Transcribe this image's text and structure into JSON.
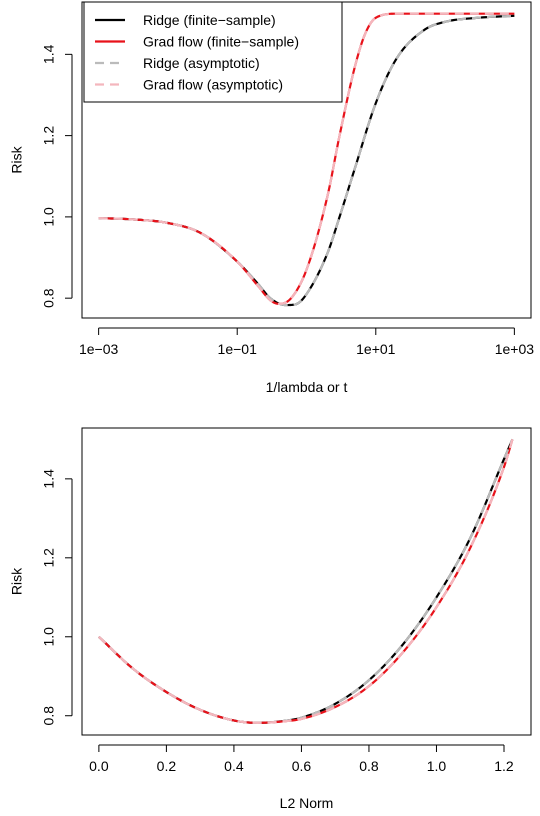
{
  "chart_data": [
    {
      "type": "line",
      "xscale": "log10",
      "xlim": [
        0.001,
        1000
      ],
      "ylim": [
        0.78,
        1.5
      ],
      "xlabel": "1/lambda or t",
      "ylabel": "Risk",
      "xticks": [
        0.001,
        0.1,
        10,
        1000
      ],
      "xtick_labels": [
        "1e−03",
        "1e−01",
        "1e+01",
        "1e+03"
      ],
      "yticks": [
        0.8,
        1.0,
        1.2,
        1.4
      ],
      "ytick_labels": [
        "0.8",
        "1.0",
        "1.2",
        "1.4"
      ],
      "grid": false,
      "legend": {
        "position": "top-left",
        "entries": [
          "Ridge (finite−sample)",
          "Grad flow (finite−sample)",
          "Ridge (asymptotic)",
          "Grad flow (asymptotic)"
        ]
      },
      "series": [
        {
          "name": "Ridge (finite−sample)",
          "color": "#000000",
          "dash": "solid",
          "x": [
            0.001,
            0.003,
            0.01,
            0.03,
            0.1,
            0.2,
            0.3,
            0.5,
            0.7,
            1,
            2,
            3,
            5,
            10,
            20,
            50,
            100,
            300,
            1000
          ],
          "y": [
            0.997,
            0.994,
            0.985,
            0.96,
            0.89,
            0.835,
            0.8,
            0.783,
            0.785,
            0.81,
            0.91,
            1.0,
            1.12,
            1.28,
            1.39,
            1.46,
            1.48,
            1.49,
            1.495
          ]
        },
        {
          "name": "Grad flow (finite−sample)",
          "color": "#e8121a",
          "dash": "solid",
          "x": [
            0.001,
            0.003,
            0.01,
            0.03,
            0.1,
            0.2,
            0.3,
            0.4,
            0.6,
            1,
            2,
            3,
            5,
            7,
            10,
            20,
            50,
            100,
            1000
          ],
          "y": [
            0.997,
            0.994,
            0.985,
            0.96,
            0.89,
            0.83,
            0.795,
            0.786,
            0.8,
            0.87,
            1.05,
            1.2,
            1.37,
            1.45,
            1.49,
            1.5,
            1.5,
            1.5,
            1.5
          ]
        },
        {
          "name": "Ridge (asymptotic)",
          "color": "#bbbbbb",
          "dash": "dashed",
          "x": [
            0.001,
            0.003,
            0.01,
            0.03,
            0.1,
            0.2,
            0.3,
            0.5,
            0.7,
            1,
            2,
            3,
            5,
            10,
            20,
            50,
            100,
            300,
            1000
          ],
          "y": [
            0.997,
            0.994,
            0.985,
            0.96,
            0.89,
            0.835,
            0.8,
            0.783,
            0.785,
            0.81,
            0.91,
            1.0,
            1.12,
            1.28,
            1.39,
            1.46,
            1.48,
            1.49,
            1.495
          ]
        },
        {
          "name": "Grad flow (asymptotic)",
          "color": "#f4b6bd",
          "dash": "dashed",
          "x": [
            0.001,
            0.003,
            0.01,
            0.03,
            0.1,
            0.2,
            0.3,
            0.4,
            0.6,
            1,
            2,
            3,
            5,
            7,
            10,
            20,
            50,
            100,
            1000
          ],
          "y": [
            0.997,
            0.994,
            0.985,
            0.96,
            0.89,
            0.83,
            0.795,
            0.786,
            0.8,
            0.87,
            1.05,
            1.2,
            1.37,
            1.45,
            1.49,
            1.5,
            1.5,
            1.5,
            1.5
          ]
        }
      ]
    },
    {
      "type": "line",
      "xscale": "linear",
      "xlim": [
        -0.05,
        1.28
      ],
      "ylim": [
        0.78,
        1.5
      ],
      "xlabel": "L2 Norm",
      "ylabel": "Risk",
      "xticks": [
        0.0,
        0.2,
        0.4,
        0.6,
        0.8,
        1.0,
        1.2
      ],
      "xtick_labels": [
        "0.0",
        "0.2",
        "0.4",
        "0.6",
        "0.8",
        "1.0",
        "1.2"
      ],
      "yticks": [
        0.8,
        1.0,
        1.2,
        1.4
      ],
      "ytick_labels": [
        "0.8",
        "1.0",
        "1.2",
        "1.4"
      ],
      "grid": false,
      "series": [
        {
          "color": "#000000",
          "dash": "solid",
          "x": [
            0.0,
            0.1,
            0.2,
            0.3,
            0.4,
            0.47,
            0.55,
            0.6,
            0.7,
            0.8,
            0.9,
            1.0,
            1.1,
            1.2,
            1.225
          ],
          "y": [
            1.0,
            0.92,
            0.86,
            0.815,
            0.788,
            0.782,
            0.787,
            0.795,
            0.83,
            0.89,
            0.98,
            1.1,
            1.25,
            1.45,
            1.5
          ]
        },
        {
          "color": "#e8121a",
          "dash": "solid",
          "x": [
            0.0,
            0.1,
            0.2,
            0.3,
            0.4,
            0.47,
            0.55,
            0.6,
            0.7,
            0.8,
            0.9,
            1.0,
            1.1,
            1.2,
            1.225
          ],
          "y": [
            1.0,
            0.92,
            0.86,
            0.815,
            0.788,
            0.782,
            0.786,
            0.792,
            0.822,
            0.875,
            0.96,
            1.075,
            1.225,
            1.43,
            1.5
          ]
        },
        {
          "color": "#bbbbbb",
          "dash": "dashed",
          "x": [
            0.0,
            0.1,
            0.2,
            0.3,
            0.4,
            0.47,
            0.55,
            0.6,
            0.7,
            0.8,
            0.9,
            1.0,
            1.1,
            1.2,
            1.225
          ],
          "y": [
            1.0,
            0.92,
            0.86,
            0.815,
            0.788,
            0.782,
            0.787,
            0.795,
            0.83,
            0.89,
            0.98,
            1.1,
            1.25,
            1.45,
            1.5
          ]
        },
        {
          "color": "#f4b6bd",
          "dash": "dashed",
          "x": [
            0.0,
            0.1,
            0.2,
            0.3,
            0.4,
            0.47,
            0.55,
            0.6,
            0.7,
            0.8,
            0.9,
            1.0,
            1.1,
            1.2,
            1.225
          ],
          "y": [
            1.0,
            0.92,
            0.86,
            0.815,
            0.788,
            0.782,
            0.786,
            0.792,
            0.822,
            0.875,
            0.96,
            1.075,
            1.225,
            1.43,
            1.5
          ]
        }
      ]
    }
  ]
}
